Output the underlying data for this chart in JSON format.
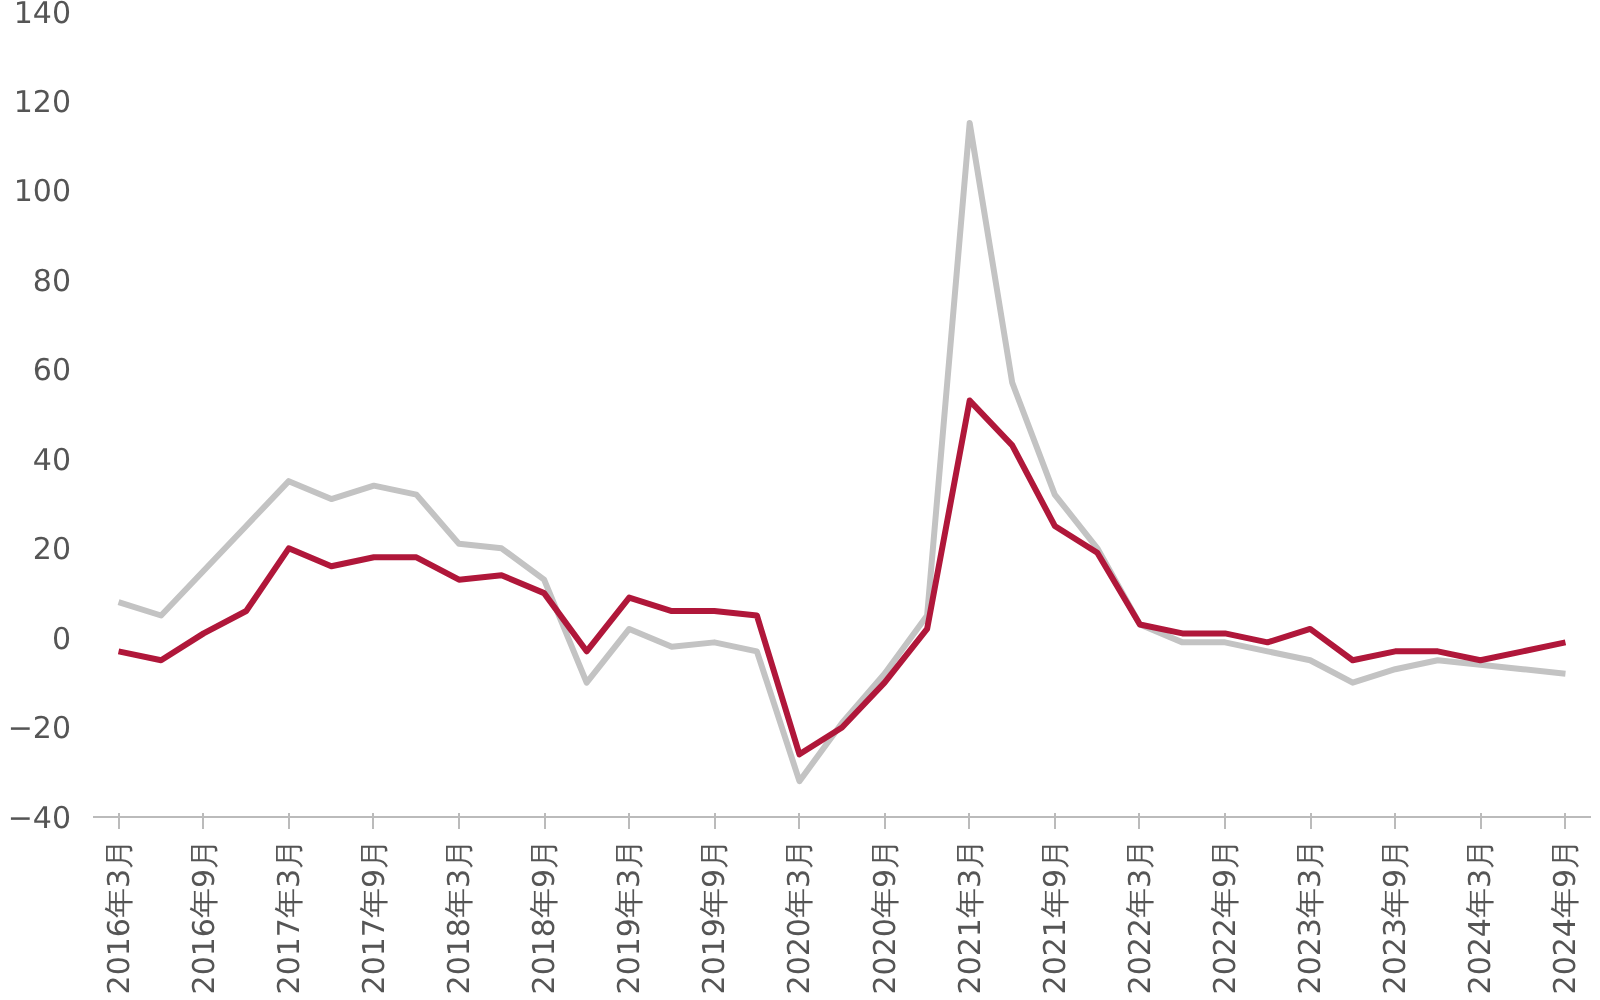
{
  "chart_data": {
    "type": "line",
    "categories": [
      "2016年3月",
      null,
      "2016年9月",
      null,
      "2017年3月",
      null,
      "2017年9月",
      null,
      "2018年3月",
      null,
      "2018年9月",
      null,
      "2019年3月",
      null,
      "2019年9月",
      null,
      "2020年3月",
      null,
      "2020年9月",
      null,
      "2021年3月",
      null,
      "2021年9月",
      null,
      "2022年3月",
      null,
      "2022年9月",
      null,
      "2023年3月",
      null,
      "2023年9月",
      null,
      "2024年3月",
      null,
      "2024年9月"
    ],
    "series": [
      {
        "color": "#c3c3c3",
        "values": [
          8,
          5,
          15,
          25,
          35,
          31,
          34,
          32,
          21,
          20,
          13,
          -10,
          2,
          -2,
          -1,
          -3,
          -32,
          -19,
          -8,
          5,
          115,
          57,
          32,
          20,
          3,
          -1,
          -1,
          -3,
          -5,
          -10,
          -7,
          -5,
          -6,
          -7,
          -8
        ]
      },
      {
        "color": "#b0173a",
        "values": [
          -3,
          -5,
          1,
          6,
          20,
          16,
          18,
          18,
          13,
          14,
          10,
          -3,
          9,
          6,
          6,
          5,
          -26,
          -20,
          -10,
          2,
          53,
          43,
          25,
          19,
          3,
          1,
          1,
          -1,
          2,
          -5,
          -3,
          -3,
          -5,
          -3,
          -1
        ]
      }
    ],
    "ylim": [
      -40,
      140
    ],
    "yticks": [
      -40,
      -20,
      0,
      20,
      40,
      60,
      80,
      100,
      120,
      140
    ],
    "grid": false,
    "line_style": "solid",
    "marker": "none"
  }
}
